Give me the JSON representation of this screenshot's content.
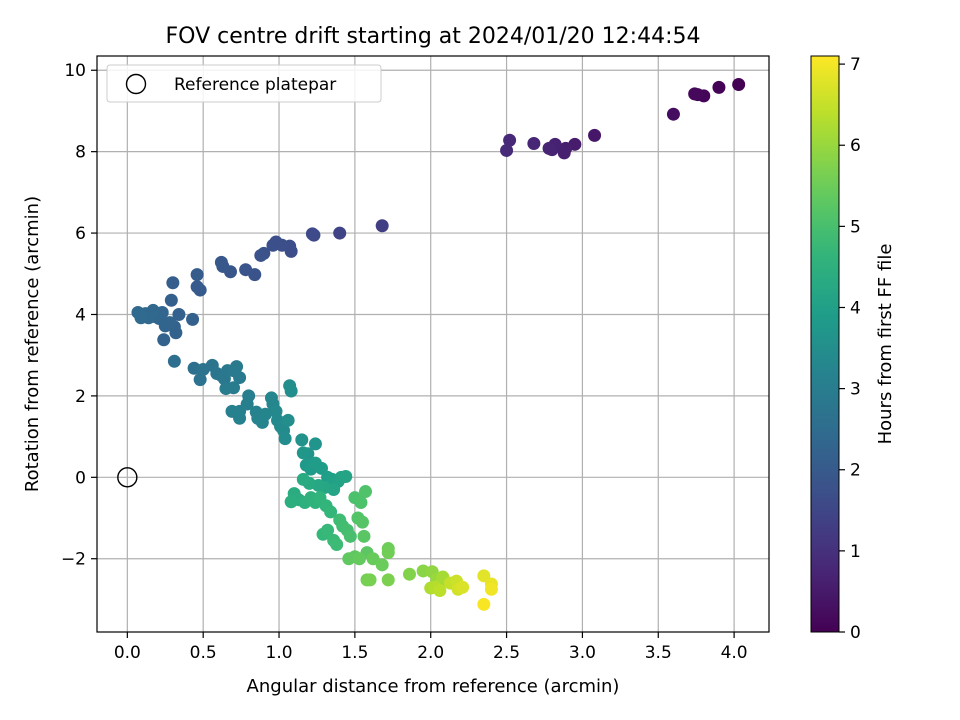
{
  "chart_data": {
    "type": "scatter",
    "title": "FOV centre drift starting at 2024/01/20 12:44:54",
    "xlabel": "Angular distance from reference (arcmin)",
    "ylabel": "Rotation from reference (arcmin)",
    "xlim": [
      -0.2,
      4.23
    ],
    "ylim": [
      -3.8,
      10.35
    ],
    "xticks": [
      0.0,
      0.5,
      1.0,
      1.5,
      2.0,
      2.5,
      3.0,
      3.5,
      4.0
    ],
    "xtick_labels": [
      "0.0",
      "0.5",
      "1.0",
      "1.5",
      "2.0",
      "2.5",
      "3.0",
      "3.5",
      "4.0"
    ],
    "yticks": [
      -2,
      0,
      2,
      4,
      6,
      8,
      10
    ],
    "ytick_labels": [
      "−2",
      "0",
      "2",
      "4",
      "6",
      "8",
      "10"
    ],
    "grid": true,
    "legend": {
      "position": "top-left",
      "entries": [
        "Reference platepar"
      ]
    },
    "reference_point": {
      "x": 0.0,
      "y": 0.0
    },
    "colorbar": {
      "label": "Hours from first FF file",
      "colormap": "viridis",
      "range": [
        0,
        7.1
      ],
      "ticks": [
        0,
        1,
        2,
        3,
        4,
        5,
        6,
        7
      ],
      "tick_labels": [
        "0",
        "1",
        "2",
        "3",
        "4",
        "5",
        "6",
        "7"
      ]
    },
    "points": [
      {
        "x": 4.03,
        "y": 9.65,
        "t": 0.0
      },
      {
        "x": 3.9,
        "y": 9.58,
        "t": 0.05
      },
      {
        "x": 3.8,
        "y": 9.37,
        "t": 0.1
      },
      {
        "x": 3.76,
        "y": 9.4,
        "t": 0.12
      },
      {
        "x": 3.74,
        "y": 9.42,
        "t": 0.15
      },
      {
        "x": 3.6,
        "y": 8.92,
        "t": 0.25
      },
      {
        "x": 3.08,
        "y": 8.4,
        "t": 0.45
      },
      {
        "x": 2.95,
        "y": 8.18,
        "t": 0.55
      },
      {
        "x": 2.89,
        "y": 8.08,
        "t": 0.6
      },
      {
        "x": 2.88,
        "y": 7.97,
        "t": 0.62
      },
      {
        "x": 2.82,
        "y": 8.18,
        "t": 0.65
      },
      {
        "x": 2.8,
        "y": 8.05,
        "t": 0.68
      },
      {
        "x": 2.78,
        "y": 8.08,
        "t": 0.7
      },
      {
        "x": 2.68,
        "y": 8.2,
        "t": 0.75
      },
      {
        "x": 2.52,
        "y": 8.28,
        "t": 0.82
      },
      {
        "x": 2.5,
        "y": 8.03,
        "t": 0.85
      },
      {
        "x": 1.68,
        "y": 6.18,
        "t": 1.3
      },
      {
        "x": 1.4,
        "y": 6.0,
        "t": 1.45
      },
      {
        "x": 1.23,
        "y": 5.95,
        "t": 1.55
      },
      {
        "x": 1.22,
        "y": 5.98,
        "t": 1.57
      },
      {
        "x": 1.08,
        "y": 5.55,
        "t": 1.65
      },
      {
        "x": 1.07,
        "y": 5.68,
        "t": 1.67
      },
      {
        "x": 1.02,
        "y": 5.7,
        "t": 1.7
      },
      {
        "x": 0.98,
        "y": 5.78,
        "t": 1.72
      },
      {
        "x": 0.96,
        "y": 5.7,
        "t": 1.74
      },
      {
        "x": 0.9,
        "y": 5.5,
        "t": 1.76
      },
      {
        "x": 0.88,
        "y": 5.45,
        "t": 1.78
      },
      {
        "x": 0.84,
        "y": 4.98,
        "t": 1.82
      },
      {
        "x": 0.78,
        "y": 5.1,
        "t": 1.86
      },
      {
        "x": 0.68,
        "y": 5.05,
        "t": 1.9
      },
      {
        "x": 0.63,
        "y": 5.18,
        "t": 1.93
      },
      {
        "x": 0.62,
        "y": 5.28,
        "t": 1.95
      },
      {
        "x": 0.48,
        "y": 4.6,
        "t": 2.0
      },
      {
        "x": 0.46,
        "y": 4.68,
        "t": 2.02
      },
      {
        "x": 0.46,
        "y": 4.98,
        "t": 2.04
      },
      {
        "x": 0.3,
        "y": 4.78,
        "t": 2.1
      },
      {
        "x": 0.29,
        "y": 4.35,
        "t": 2.14
      },
      {
        "x": 0.43,
        "y": 3.88,
        "t": 2.16
      },
      {
        "x": 0.34,
        "y": 4.0,
        "t": 2.18
      },
      {
        "x": 0.31,
        "y": 3.7,
        "t": 2.2
      },
      {
        "x": 0.32,
        "y": 3.55,
        "t": 2.22
      },
      {
        "x": 0.24,
        "y": 3.38,
        "t": 2.24
      },
      {
        "x": 0.28,
        "y": 3.8,
        "t": 2.26
      },
      {
        "x": 0.25,
        "y": 3.72,
        "t": 2.28
      },
      {
        "x": 0.21,
        "y": 3.9,
        "t": 2.3
      },
      {
        "x": 0.23,
        "y": 4.05,
        "t": 2.32
      },
      {
        "x": 0.18,
        "y": 3.95,
        "t": 2.34
      },
      {
        "x": 0.17,
        "y": 4.1,
        "t": 2.36
      },
      {
        "x": 0.14,
        "y": 3.92,
        "t": 2.38
      },
      {
        "x": 0.12,
        "y": 4.02,
        "t": 2.4
      },
      {
        "x": 0.09,
        "y": 3.92,
        "t": 2.42
      },
      {
        "x": 0.07,
        "y": 4.05,
        "t": 2.44
      },
      {
        "x": 0.31,
        "y": 2.85,
        "t": 2.55
      },
      {
        "x": 0.44,
        "y": 2.68,
        "t": 2.62
      },
      {
        "x": 0.48,
        "y": 2.4,
        "t": 2.66
      },
      {
        "x": 0.5,
        "y": 2.65,
        "t": 2.7
      },
      {
        "x": 0.56,
        "y": 2.75,
        "t": 2.74
      },
      {
        "x": 0.59,
        "y": 2.55,
        "t": 2.78
      },
      {
        "x": 0.62,
        "y": 2.5,
        "t": 2.8
      },
      {
        "x": 0.64,
        "y": 2.42,
        "t": 2.82
      },
      {
        "x": 0.66,
        "y": 2.62,
        "t": 2.85
      },
      {
        "x": 0.7,
        "y": 2.62,
        "t": 2.88
      },
      {
        "x": 0.72,
        "y": 2.72,
        "t": 2.9
      },
      {
        "x": 0.74,
        "y": 2.45,
        "t": 2.92
      },
      {
        "x": 0.65,
        "y": 2.18,
        "t": 2.95
      },
      {
        "x": 0.7,
        "y": 2.2,
        "t": 2.98
      },
      {
        "x": 0.8,
        "y": 2.0,
        "t": 3.02
      },
      {
        "x": 0.79,
        "y": 1.8,
        "t": 3.05
      },
      {
        "x": 0.74,
        "y": 1.62,
        "t": 3.08
      },
      {
        "x": 0.69,
        "y": 1.62,
        "t": 3.1
      },
      {
        "x": 0.74,
        "y": 1.45,
        "t": 3.13
      },
      {
        "x": 0.85,
        "y": 1.6,
        "t": 3.16
      },
      {
        "x": 0.86,
        "y": 1.45,
        "t": 3.19
      },
      {
        "x": 0.89,
        "y": 1.35,
        "t": 3.22
      },
      {
        "x": 0.91,
        "y": 1.55,
        "t": 3.25
      },
      {
        "x": 0.95,
        "y": 1.95,
        "t": 3.28
      },
      {
        "x": 0.96,
        "y": 1.8,
        "t": 3.3
      },
      {
        "x": 0.98,
        "y": 1.62,
        "t": 3.33
      },
      {
        "x": 0.99,
        "y": 1.4,
        "t": 3.36
      },
      {
        "x": 1.01,
        "y": 1.25,
        "t": 3.39
      },
      {
        "x": 1.03,
        "y": 1.15,
        "t": 3.42
      },
      {
        "x": 1.04,
        "y": 0.95,
        "t": 3.45
      },
      {
        "x": 1.06,
        "y": 1.4,
        "t": 3.48
      },
      {
        "x": 1.07,
        "y": 2.25,
        "t": 3.5
      },
      {
        "x": 1.08,
        "y": 2.12,
        "t": 3.52
      },
      {
        "x": 1.15,
        "y": 0.92,
        "t": 3.6
      },
      {
        "x": 1.19,
        "y": 0.58,
        "t": 3.65
      },
      {
        "x": 1.24,
        "y": 0.82,
        "t": 3.7
      },
      {
        "x": 1.16,
        "y": 0.6,
        "t": 3.75
      },
      {
        "x": 1.18,
        "y": 0.3,
        "t": 3.8
      },
      {
        "x": 1.21,
        "y": 0.2,
        "t": 3.85
      },
      {
        "x": 1.24,
        "y": 0.35,
        "t": 3.88
      },
      {
        "x": 1.28,
        "y": 0.22,
        "t": 3.92
      },
      {
        "x": 1.32,
        "y": 0.0,
        "t": 3.96
      },
      {
        "x": 1.35,
        "y": -0.05,
        "t": 4.0
      },
      {
        "x": 1.39,
        "y": -0.1,
        "t": 4.04
      },
      {
        "x": 1.41,
        "y": 0.0,
        "t": 4.08
      },
      {
        "x": 1.44,
        "y": 0.02,
        "t": 4.12
      },
      {
        "x": 1.36,
        "y": -0.3,
        "t": 4.16
      },
      {
        "x": 1.3,
        "y": -0.25,
        "t": 4.2
      },
      {
        "x": 1.26,
        "y": -0.2,
        "t": 4.24
      },
      {
        "x": 1.2,
        "y": -0.15,
        "t": 4.28
      },
      {
        "x": 1.16,
        "y": -0.05,
        "t": 4.32
      },
      {
        "x": 1.1,
        "y": -0.4,
        "t": 4.36
      },
      {
        "x": 1.13,
        "y": -0.55,
        "t": 4.4
      },
      {
        "x": 1.08,
        "y": -0.6,
        "t": 4.44
      },
      {
        "x": 1.17,
        "y": -0.62,
        "t": 4.48
      },
      {
        "x": 1.21,
        "y": -0.5,
        "t": 4.52
      },
      {
        "x": 1.24,
        "y": -0.62,
        "t": 4.56
      },
      {
        "x": 1.27,
        "y": -0.5,
        "t": 4.6
      },
      {
        "x": 1.31,
        "y": -0.7,
        "t": 4.64
      },
      {
        "x": 1.34,
        "y": -0.85,
        "t": 4.68
      },
      {
        "x": 1.29,
        "y": -1.4,
        "t": 4.72
      },
      {
        "x": 1.32,
        "y": -1.3,
        "t": 4.76
      },
      {
        "x": 1.36,
        "y": -1.55,
        "t": 4.8
      },
      {
        "x": 1.38,
        "y": -1.65,
        "t": 4.84
      },
      {
        "x": 1.4,
        "y": -1.05,
        "t": 4.88
      },
      {
        "x": 1.42,
        "y": -1.2,
        "t": 4.92
      },
      {
        "x": 1.45,
        "y": -1.3,
        "t": 4.96
      },
      {
        "x": 1.47,
        "y": -1.45,
        "t": 5.0
      },
      {
        "x": 1.5,
        "y": -0.5,
        "t": 5.04
      },
      {
        "x": 1.54,
        "y": -0.62,
        "t": 5.08
      },
      {
        "x": 1.57,
        "y": -0.35,
        "t": 5.12
      },
      {
        "x": 1.52,
        "y": -1.0,
        "t": 5.16
      },
      {
        "x": 1.55,
        "y": -1.1,
        "t": 5.2
      },
      {
        "x": 1.56,
        "y": -1.45,
        "t": 5.24
      },
      {
        "x": 1.58,
        "y": -1.85,
        "t": 5.28
      },
      {
        "x": 1.5,
        "y": -1.95,
        "t": 5.32
      },
      {
        "x": 1.46,
        "y": -2.0,
        "t": 5.36
      },
      {
        "x": 1.53,
        "y": -2.0,
        "t": 5.4
      },
      {
        "x": 1.62,
        "y": -2.0,
        "t": 5.44
      },
      {
        "x": 1.68,
        "y": -2.15,
        "t": 5.48
      },
      {
        "x": 1.72,
        "y": -1.75,
        "t": 5.52
      },
      {
        "x": 1.72,
        "y": -1.85,
        "t": 5.56
      },
      {
        "x": 1.58,
        "y": -2.52,
        "t": 5.6
      },
      {
        "x": 1.6,
        "y": -2.52,
        "t": 5.64
      },
      {
        "x": 1.72,
        "y": -2.52,
        "t": 5.68
      },
      {
        "x": 1.86,
        "y": -2.38,
        "t": 5.76
      },
      {
        "x": 1.95,
        "y": -2.3,
        "t": 5.84
      },
      {
        "x": 2.01,
        "y": -2.32,
        "t": 5.92
      },
      {
        "x": 2.04,
        "y": -2.5,
        "t": 6.0
      },
      {
        "x": 2.06,
        "y": -2.6,
        "t": 6.08
      },
      {
        "x": 2.08,
        "y": -2.45,
        "t": 6.16
      },
      {
        "x": 2.0,
        "y": -2.72,
        "t": 6.24
      },
      {
        "x": 2.03,
        "y": -2.7,
        "t": 6.32
      },
      {
        "x": 2.06,
        "y": -2.78,
        "t": 6.4
      },
      {
        "x": 2.13,
        "y": -2.6,
        "t": 6.48
      },
      {
        "x": 2.17,
        "y": -2.55,
        "t": 6.56
      },
      {
        "x": 2.18,
        "y": -2.75,
        "t": 6.64
      },
      {
        "x": 2.21,
        "y": -2.7,
        "t": 6.72
      },
      {
        "x": 2.35,
        "y": -2.42,
        "t": 6.8
      },
      {
        "x": 2.4,
        "y": -2.62,
        "t": 6.88
      },
      {
        "x": 2.4,
        "y": -2.75,
        "t": 6.96
      },
      {
        "x": 2.35,
        "y": -3.12,
        "t": 7.05
      }
    ]
  }
}
